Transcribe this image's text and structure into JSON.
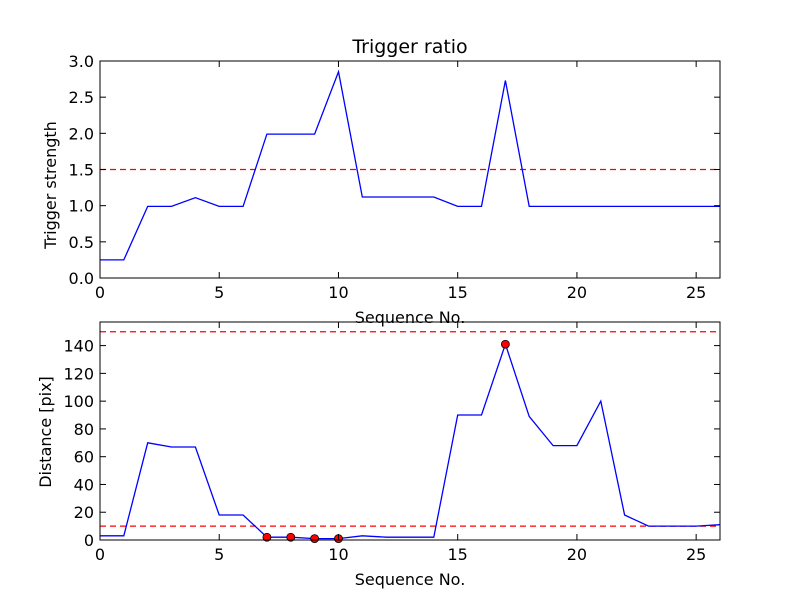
{
  "chart_data": [
    {
      "type": "line",
      "title": "Trigger ratio",
      "xlabel": "Sequence No.",
      "ylabel": "Trigger strength",
      "xlim": [
        0,
        26
      ],
      "ylim": [
        0,
        3.0
      ],
      "xticks": [
        0,
        5,
        10,
        15,
        20,
        25
      ],
      "xtick_labels": [
        "0",
        "5",
        "10",
        "15",
        "20",
        "25"
      ],
      "yticks": [
        0,
        0.5,
        1.0,
        1.5,
        2.0,
        2.5,
        3.0
      ],
      "ytick_labels": [
        "0.0",
        "0.5",
        "1.0",
        "1.5",
        "2.0",
        "2.5",
        "3.0"
      ],
      "grid": false,
      "series": [
        {
          "color": "#0000ff",
          "style": "solid",
          "x": [
            0,
            1,
            2,
            3,
            4,
            5,
            6,
            7,
            8,
            9,
            10,
            11,
            12,
            13,
            14,
            15,
            16,
            17,
            18,
            19,
            20,
            21,
            22,
            23,
            24,
            25,
            26
          ],
          "y": [
            0.25,
            0.25,
            0.99,
            0.99,
            1.11,
            0.99,
            0.99,
            1.99,
            1.99,
            1.99,
            2.85,
            1.12,
            1.12,
            1.12,
            1.12,
            0.99,
            0.99,
            2.73,
            0.99,
            0.99,
            0.99,
            0.99,
            0.99,
            0.99,
            0.99,
            0.99,
            0.99
          ]
        }
      ],
      "hlines": [
        {
          "y": 1.5,
          "color": "#ff0000",
          "style": "dashed"
        }
      ]
    },
    {
      "type": "line",
      "title": "",
      "xlabel": "Sequence No.",
      "ylabel": "Distance [pix]",
      "xlim": [
        0,
        26
      ],
      "ylim": [
        0,
        157
      ],
      "xticks": [
        0,
        5,
        10,
        15,
        20,
        25
      ],
      "xtick_labels": [
        "0",
        "5",
        "10",
        "15",
        "20",
        "25"
      ],
      "yticks": [
        0,
        20,
        40,
        60,
        80,
        100,
        120,
        140
      ],
      "ytick_labels": [
        "0",
        "20",
        "40",
        "60",
        "80",
        "100",
        "120",
        "140"
      ],
      "grid": false,
      "series": [
        {
          "color": "#0000ff",
          "style": "solid",
          "x": [
            0,
            1,
            2,
            3,
            4,
            5,
            6,
            7,
            8,
            9,
            10,
            11,
            12,
            13,
            14,
            15,
            16,
            17,
            18,
            19,
            20,
            21,
            22,
            23,
            24,
            25,
            26
          ],
          "y": [
            3,
            3,
            70,
            67,
            67,
            18,
            18,
            2,
            2,
            1,
            1,
            3,
            2,
            2,
            2,
            90,
            90,
            141,
            89,
            68,
            68,
            100,
            18,
            10,
            10,
            10,
            11
          ]
        }
      ],
      "markers": {
        "color": "#ff0000",
        "edge": "#000000",
        "x": [
          7,
          8,
          9,
          10,
          17
        ],
        "y": [
          2,
          2,
          1,
          1,
          141
        ]
      },
      "hlines": [
        {
          "y": 150,
          "color": "#ff0000",
          "style": "dashed"
        },
        {
          "y": 10,
          "color": "#ff0000",
          "style": "dashed"
        }
      ]
    }
  ]
}
